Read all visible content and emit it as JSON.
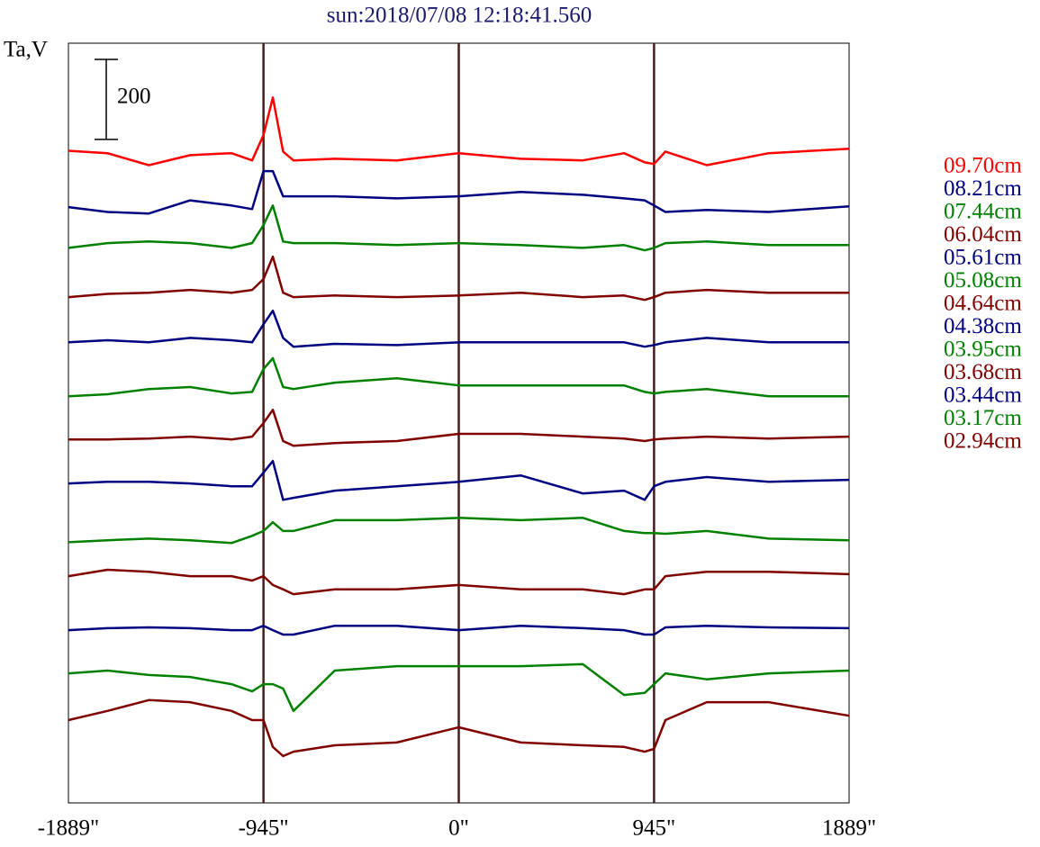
{
  "chart_data": {
    "type": "line",
    "title": "sun:2018/07/08 12:18:41.560",
    "y_label": "Ta,V",
    "scale_bar": 200,
    "xlim": [
      -1889,
      1889
    ],
    "xticks": [
      {
        "value": -1889,
        "label": "-1889\""
      },
      {
        "value": -945,
        "label": "-945\""
      },
      {
        "value": 0,
        "label": "0\""
      },
      {
        "value": 945,
        "label": "945\""
      },
      {
        "value": 1889,
        "label": "1889\""
      }
    ],
    "ylim": [
      0,
      1900
    ],
    "grid": true,
    "x": [
      -1889,
      -1700,
      -1500,
      -1300,
      -1100,
      -1000,
      -945,
      -900,
      -850,
      -800,
      -600,
      -300,
      0,
      300,
      600,
      800,
      900,
      945,
      1000,
      1200,
      1500,
      1889
    ],
    "series": [
      {
        "name": "09.70cm",
        "color": "#ff0000",
        "values": [
          1631,
          1625,
          1595,
          1620,
          1625,
          1607,
          1670,
          1764,
          1629,
          1607,
          1611,
          1607,
          1625,
          1611,
          1607,
          1625,
          1602,
          1598,
          1629,
          1595,
          1625,
          1636
        ]
      },
      {
        "name": "08.21cm",
        "color": "#000080",
        "values": [
          1490,
          1478,
          1474,
          1507,
          1494,
          1485,
          1580,
          1580,
          1517,
          1517,
          1517,
          1512,
          1517,
          1528,
          1521,
          1512,
          1507,
          1494,
          1478,
          1483,
          1478,
          1492
        ]
      },
      {
        "name": "07.44cm",
        "color": "#008000",
        "values": [
          1388,
          1400,
          1404,
          1400,
          1388,
          1400,
          1445,
          1494,
          1404,
          1400,
          1400,
          1395,
          1400,
          1395,
          1388,
          1395,
          1382,
          1388,
          1400,
          1404,
          1395,
          1395
        ]
      },
      {
        "name": "06.04cm",
        "color": "#800000",
        "values": [
          1265,
          1273,
          1276,
          1283,
          1276,
          1283,
          1310,
          1366,
          1276,
          1265,
          1269,
          1265,
          1269,
          1276,
          1265,
          1269,
          1258,
          1265,
          1276,
          1283,
          1276,
          1276
        ]
      },
      {
        "name": "05.61cm",
        "color": "#000080",
        "values": [
          1152,
          1157,
          1152,
          1163,
          1157,
          1152,
          1197,
          1231,
          1163,
          1141,
          1148,
          1145,
          1152,
          1152,
          1152,
          1152,
          1141,
          1145,
          1152,
          1163,
          1152,
          1152
        ]
      },
      {
        "name": "05.08cm",
        "color": "#008000",
        "values": [
          1017,
          1022,
          1035,
          1040,
          1024,
          1028,
          1085,
          1112,
          1040,
          1035,
          1051,
          1062,
          1044,
          1044,
          1044,
          1044,
          1028,
          1024,
          1028,
          1035,
          1017,
          1017
        ]
      },
      {
        "name": "04.64cm",
        "color": "#800000",
        "values": [
          909,
          909,
          911,
          916,
          909,
          916,
          950,
          983,
          905,
          893,
          900,
          905,
          923,
          923,
          916,
          911,
          905,
          909,
          911,
          916,
          911,
          916
        ]
      },
      {
        "name": "04.38cm",
        "color": "#000080",
        "values": [
          799,
          803,
          803,
          799,
          792,
          792,
          826,
          855,
          758,
          763,
          781,
          792,
          803,
          819,
          774,
          781,
          758,
          792,
          803,
          815,
          803,
          808
        ]
      },
      {
        "name": "03.95cm",
        "color": "#008000",
        "values": [
          652,
          657,
          661,
          657,
          650,
          668,
          680,
          702,
          680,
          680,
          707,
          707,
          713,
          707,
          713,
          680,
          675,
          675,
          673,
          680,
          661,
          657
        ]
      },
      {
        "name": "03.68cm",
        "color": "#800000",
        "values": [
          567,
          583,
          578,
          567,
          567,
          556,
          567,
          545,
          534,
          522,
          534,
          534,
          545,
          534,
          534,
          522,
          534,
          534,
          567,
          578,
          578,
          572
        ]
      },
      {
        "name": "03.44cm",
        "color": "#000080",
        "values": [
          432,
          437,
          439,
          437,
          432,
          432,
          443,
          432,
          421,
          421,
          443,
          443,
          432,
          443,
          437,
          432,
          421,
          421,
          439,
          443,
          439,
          437
        ]
      },
      {
        "name": "03.17cm",
        "color": "#008000",
        "values": [
          324,
          331,
          320,
          315,
          297,
          279,
          297,
          297,
          286,
          230,
          331,
          342,
          342,
          342,
          347,
          270,
          275,
          297,
          324,
          309,
          324,
          331
        ]
      },
      {
        "name": "02.94cm",
        "color": "#800000",
        "values": [
          207,
          230,
          257,
          252,
          230,
          207,
          207,
          140,
          117,
          128,
          144,
          151,
          189,
          151,
          144,
          140,
          128,
          135,
          207,
          252,
          252,
          218
        ]
      }
    ]
  }
}
